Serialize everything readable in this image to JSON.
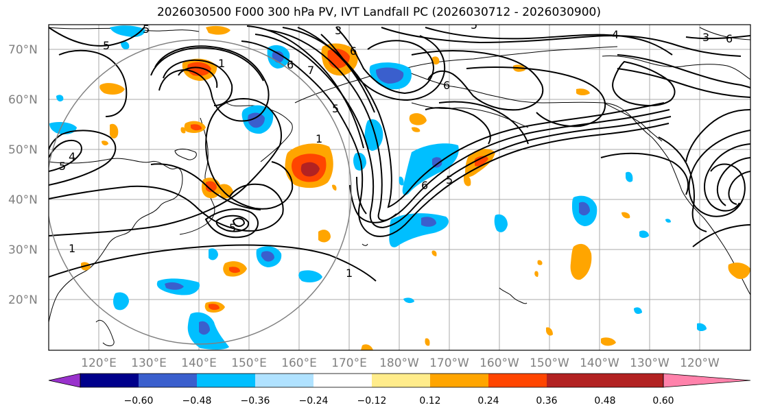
{
  "title": "2026030500 F000 300 hPa PV, IVT Landfall PC (2026030712 - 2026030900)",
  "map": {
    "lat_labels": [
      "70°N",
      "60°N",
      "50°N",
      "40°N",
      "30°N",
      "20°N"
    ],
    "lon_labels": [
      "120°E",
      "130°E",
      "140°E",
      "150°E",
      "160°E",
      "170°E",
      "180°W",
      "170°W",
      "160°W",
      "150°W",
      "140°W",
      "130°W",
      "120°W"
    ],
    "contour_labels": [
      "5",
      "3",
      "5",
      "4",
      "5",
      "1",
      "6",
      "7",
      "5",
      "6",
      "6",
      "5",
      "4",
      "5",
      "1",
      "1",
      "5",
      "6",
      "1",
      "3",
      "6"
    ]
  },
  "colorbar": {
    "colors": [
      "#9932cc",
      "#00008b",
      "#3a5fcd",
      "#00bfff",
      "#b0e2ff",
      "#ffffff",
      "#ffec8b",
      "#ffa500",
      "#ff4500",
      "#b22222",
      "#ff82ab"
    ],
    "tick_labels": [
      "−0.60",
      "−0.48",
      "−0.36",
      "−0.24",
      "−0.12",
      "0.12",
      "0.24",
      "0.36",
      "0.48",
      "0.60"
    ]
  }
}
